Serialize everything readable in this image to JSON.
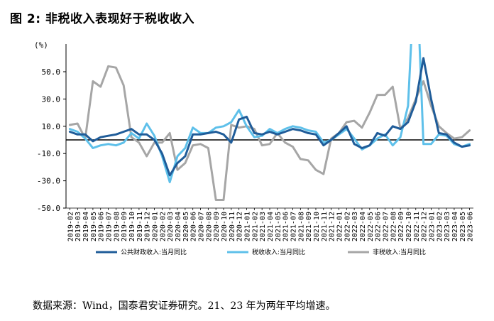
{
  "figure": {
    "title": "图 2: 非税收入表现好于税收收入",
    "source": "数据来源：Wind，国泰君安证券研究。21、23 年为两年平均增速。"
  },
  "chart_data": {
    "type": "line",
    "ylabel": "(%)",
    "ylim": [
      -50,
      70
    ],
    "yticks": [
      50,
      30,
      10,
      -10,
      -30,
      -50
    ],
    "ytick_labels": [
      "50.0",
      "30.0",
      "10.0",
      "-10.0",
      "-30.0",
      "-50.0"
    ],
    "grid": false,
    "legend_position": "bottom",
    "categories": [
      "2019-02",
      "2019-03",
      "2019-04",
      "2019-05",
      "2019-06",
      "2019-07",
      "2019-08",
      "2019-09",
      "2019-10",
      "2019-11",
      "2019-12",
      "2020-01",
      "2020-02",
      "2020-03",
      "2020-04",
      "2020-05",
      "2020-06",
      "2020-07",
      "2020-08",
      "2020-09",
      "2020-10",
      "2020-11",
      "2020-12",
      "2021-01",
      "2021-02",
      "2021-03",
      "2021-04",
      "2021-05",
      "2021-06",
      "2021-07",
      "2021-08",
      "2021-09",
      "2021-10",
      "2021-11",
      "2021-12",
      "2022-01",
      "2022-02",
      "2022-03",
      "2022-04",
      "2022-05",
      "2022-06",
      "2022-07",
      "2022-08",
      "2022-09",
      "2022-10",
      "2022-11",
      "2022-12",
      "2023-01",
      "2023-02",
      "2023-03",
      "2023-04",
      "2023-05",
      "2023-06"
    ],
    "tick_labels": [
      "2019-02",
      "2019-03",
      "2019-04",
      "2019-05",
      "2019-06",
      "2019-07",
      "2019-08",
      "2019-09",
      "2019-10",
      "2019-11",
      "2019-12",
      "2020-01",
      "2020-02",
      "2020-03",
      "2020-04",
      "2020-05",
      "2020-06",
      "2020-07",
      "2020-08",
      "2020-09",
      "2020-10",
      "2020-11",
      "2020-12",
      "2021-01",
      "2021-02",
      "2021-03",
      "2021-04",
      "2021-05",
      "2021-06",
      "2021-07",
      "2021-08",
      "2021-09",
      "2021-10",
      "2021-11",
      "2021-12",
      "2022-01",
      "2022-02",
      "2022-03",
      "2022-04",
      "2022-05",
      "2022-06",
      "2022-07",
      "2022-08",
      "2022-09",
      "2022-10",
      "2022-11",
      "2022-12",
      "2023-01",
      "2023-02",
      "2023-03",
      "2023-04",
      "2023-05",
      "2023-06"
    ],
    "series": [
      {
        "name": "公共财政收入:当月同比",
        "color": "#1f5c99",
        "values": [
          6,
          4,
          4,
          -1,
          2,
          3,
          4,
          6,
          8,
          4,
          4,
          0,
          -10,
          -26,
          -17,
          -12,
          4,
          4,
          5,
          6,
          4,
          -2,
          15,
          17,
          5,
          4,
          6,
          4,
          6,
          8,
          7,
          5,
          4,
          -4,
          0,
          5,
          10,
          -3,
          -6,
          -4,
          5,
          3,
          10,
          8,
          13,
          28,
          60,
          30,
          5,
          4,
          -2,
          -5,
          -4
        ]
      },
      {
        "name": "税收收入:当月同比",
        "color": "#5ec0ea",
        "values": [
          8,
          6,
          1,
          -6,
          -4,
          -3,
          -4,
          -2,
          5,
          1,
          12,
          3,
          -12,
          -31,
          -12,
          -6,
          9,
          5,
          5,
          9,
          10,
          13,
          22,
          10,
          2,
          3,
          8,
          5,
          8,
          10,
          9,
          7,
          6,
          -2,
          0,
          4,
          8,
          1,
          -7,
          -4,
          1,
          4,
          -4,
          2,
          25,
          140,
          -3,
          -3,
          4,
          3,
          -3,
          -5,
          -3
        ]
      },
      {
        "name": "非税收入:当月同比",
        "color": "#a6a6a6",
        "values": [
          11,
          12,
          1,
          43,
          39,
          54,
          53,
          40,
          2,
          -2,
          -12,
          -2,
          -2,
          5,
          -22,
          -17,
          -4,
          -3,
          -6,
          -44,
          -44,
          11,
          9,
          10,
          8,
          -4,
          -3,
          5,
          -2,
          -5,
          -14,
          -15,
          -22,
          -25,
          1,
          5,
          13,
          14,
          9,
          20,
          33,
          33,
          39,
          8,
          16,
          30,
          43,
          25,
          10,
          5,
          1,
          2,
          7
        ]
      }
    ]
  }
}
